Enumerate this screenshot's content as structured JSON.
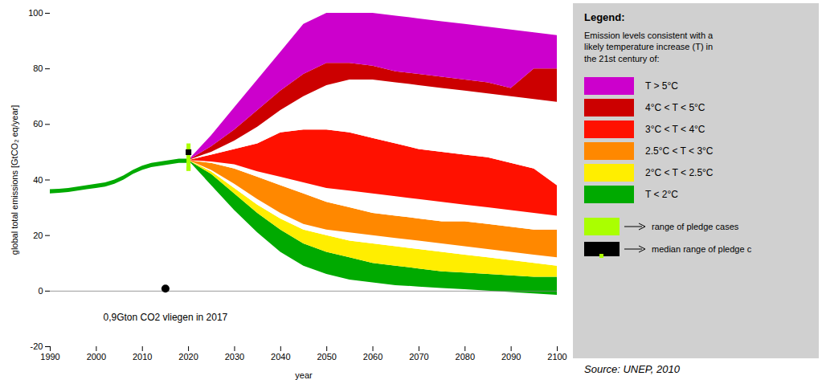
{
  "chart_data": {
    "type": "area",
    "xlabel": "year",
    "ylabel": "global total emissions [GtCO₂ eq/year]",
    "xlim": [
      1990,
      2100
    ],
    "xticks": [
      1990,
      2000,
      2010,
      2020,
      2030,
      2040,
      2050,
      2060,
      2070,
      2080,
      2090,
      2100
    ],
    "ylim": [
      -20,
      100
    ],
    "yticks": [
      -20,
      0,
      20,
      40,
      60,
      80,
      100
    ],
    "series": [
      {
        "name": "T < 2°C",
        "color": "#00aa00",
        "x": [
          2020,
          2025,
          2030,
          2035,
          2040,
          2045,
          2050,
          2055,
          2060,
          2065,
          2070,
          2075,
          2080,
          2085,
          2090,
          2095,
          2100
        ],
        "lower": [
          47,
          38,
          29,
          21,
          14,
          9,
          6,
          4,
          3,
          2,
          1.5,
          1,
          0.5,
          0,
          -0.5,
          -1,
          -1.5
        ],
        "upper": [
          47,
          42,
          35,
          28,
          22,
          17,
          14,
          12,
          10,
          9,
          8,
          7,
          6.5,
          6,
          5.5,
          5,
          5
        ]
      },
      {
        "name": "2°C < T < 2.5°C",
        "color": "#ffee00",
        "x": [
          2020,
          2025,
          2030,
          2035,
          2040,
          2045,
          2050,
          2055,
          2060,
          2065,
          2070,
          2075,
          2080,
          2085,
          2090,
          2095,
          2100
        ],
        "lower": [
          47,
          42,
          35,
          28,
          22,
          17,
          14,
          12,
          10,
          9,
          8,
          7,
          6.5,
          6,
          5.5,
          5,
          5
        ],
        "upper": [
          47,
          43,
          37,
          31,
          26,
          22,
          20,
          18,
          17,
          16,
          15,
          14,
          13,
          12,
          11,
          10,
          9
        ]
      },
      {
        "color": "#ffffff",
        "x": [
          2020,
          2025,
          2030,
          2035,
          2040,
          2045,
          2050,
          2055,
          2060,
          2065,
          2070,
          2075,
          2080,
          2085,
          2090,
          2095,
          2100
        ],
        "lower": [
          47,
          43,
          37,
          31,
          26,
          22,
          20,
          18,
          17,
          16,
          15,
          14,
          13,
          12,
          11,
          10,
          9
        ],
        "upper": [
          47,
          43.5,
          38.5,
          33,
          28,
          24,
          22,
          21,
          20,
          19,
          18,
          17,
          16,
          15,
          14,
          13,
          12
        ]
      },
      {
        "name": "2.5°C < T < 3°C",
        "color": "#ff8800",
        "x": [
          2020,
          2025,
          2030,
          2035,
          2040,
          2045,
          2050,
          2055,
          2060,
          2065,
          2070,
          2075,
          2080,
          2085,
          2090,
          2095,
          2100
        ],
        "lower": [
          47,
          43.5,
          38.5,
          33,
          28,
          24,
          22,
          21,
          20,
          19,
          18,
          17,
          16,
          15,
          14,
          13,
          12
        ],
        "upper": [
          47,
          46,
          44,
          41,
          38,
          35,
          32,
          30,
          28,
          27,
          26,
          25,
          25,
          24,
          23,
          22,
          22
        ]
      },
      {
        "color": "#ffffff",
        "x": [
          2020,
          2025,
          2030,
          2035,
          2040,
          2045,
          2050,
          2055,
          2060,
          2065,
          2070,
          2075,
          2080,
          2085,
          2090,
          2095,
          2100
        ],
        "lower": [
          47,
          46,
          44,
          41,
          38,
          35,
          32,
          30,
          28,
          27,
          26,
          25,
          25,
          24,
          23,
          22,
          22
        ],
        "upper": [
          47,
          46.5,
          45.5,
          43,
          41,
          39,
          37,
          36,
          35,
          34,
          33,
          32,
          31,
          30,
          29,
          28,
          27
        ]
      },
      {
        "name": "3°C < T < 4°C",
        "color": "#ff1100",
        "x": [
          2020,
          2025,
          2030,
          2035,
          2040,
          2045,
          2050,
          2055,
          2060,
          2065,
          2070,
          2075,
          2080,
          2085,
          2090,
          2095,
          2100
        ],
        "lower": [
          47,
          46.5,
          45.5,
          43,
          41,
          39,
          37,
          36,
          35,
          34,
          33,
          32,
          31,
          30,
          29,
          28,
          27
        ],
        "upper": [
          47,
          49,
          51,
          53,
          57,
          58,
          58,
          57,
          55,
          53,
          51,
          50,
          49,
          48,
          46,
          44,
          38
        ]
      },
      {
        "color": "#ffffff",
        "x": [
          2020,
          2025,
          2030,
          2035,
          2040,
          2045,
          2050,
          2055,
          2060,
          2065,
          2070,
          2075,
          2080,
          2085,
          2090,
          2095,
          2100
        ],
        "lower": [
          47,
          49,
          51,
          53,
          57,
          58,
          58,
          57,
          55,
          53,
          51,
          50,
          49,
          48,
          46,
          44,
          38
        ],
        "upper": [
          47,
          50,
          54,
          59,
          65,
          70,
          74,
          76,
          76,
          75,
          74,
          73,
          72,
          71,
          70,
          69,
          68
        ]
      },
      {
        "name": "4°C < T < 5°C",
        "color": "#cc0000",
        "x": [
          2020,
          2025,
          2030,
          2035,
          2040,
          2045,
          2050,
          2055,
          2060,
          2065,
          2070,
          2075,
          2080,
          2085,
          2090,
          2095,
          2100
        ],
        "lower": [
          47,
          50,
          54,
          59,
          65,
          70,
          74,
          76,
          76,
          75,
          74,
          73,
          72,
          71,
          70,
          69,
          68
        ],
        "upper": [
          47,
          52,
          58,
          65,
          72,
          78,
          82,
          82,
          81,
          79,
          78,
          77,
          76,
          75,
          73,
          80,
          80
        ]
      },
      {
        "name": "T > 5°C",
        "color": "#cc00cc",
        "x": [
          2020,
          2025,
          2030,
          2035,
          2040,
          2045,
          2050,
          2055,
          2060,
          2065,
          2070,
          2075,
          2080,
          2085,
          2090,
          2095,
          2100
        ],
        "lower": [
          47,
          52,
          58,
          65,
          72,
          78,
          82,
          82,
          81,
          79,
          78,
          77,
          76,
          75,
          73,
          80,
          80
        ],
        "upper": [
          47,
          56,
          66,
          76,
          86,
          96,
          100,
          100,
          100,
          99,
          98,
          97,
          96,
          95,
          94,
          93,
          92
        ]
      },
      {
        "color": "#00aa00",
        "x": [
          1990,
          1992,
          1994,
          1996,
          1998,
          2000,
          2002,
          2004,
          2006,
          2008,
          2010,
          2012,
          2014,
          2016,
          2018,
          2020
        ],
        "lower": [
          35,
          35.2,
          35.5,
          36,
          36.5,
          37,
          37.5,
          38.5,
          40,
          42,
          43.5,
          44.5,
          45,
          45.5,
          46,
          46
        ],
        "upper": [
          36.5,
          36.7,
          37,
          37.5,
          38,
          38.5,
          39,
          40,
          41.5,
          43.5,
          45,
          46,
          46.5,
          47,
          47.5,
          47.5
        ]
      }
    ],
    "hline": 0,
    "pledge": {
      "x": 2020,
      "low": 44,
      "high": 53,
      "median": 50,
      "color": "#aaff00",
      "range_label": "range of pledge cases",
      "median_label": "median range of pledge c"
    },
    "points": [
      {
        "x": 2015,
        "y": 0.9,
        "color": "#000000"
      }
    ],
    "annotations": [
      {
        "x": 2015,
        "y": -8,
        "text": "0,9Gton CO2 vliegen in 2017"
      }
    ],
    "legend_title": "Legend:",
    "legend_subtitle": "Emission levels consistent with a\nlikely temperature increase (T) in\nthe 21st century of:",
    "legend_background": "#d0d0d0",
    "caption": "Source: UNEP, 2010"
  }
}
